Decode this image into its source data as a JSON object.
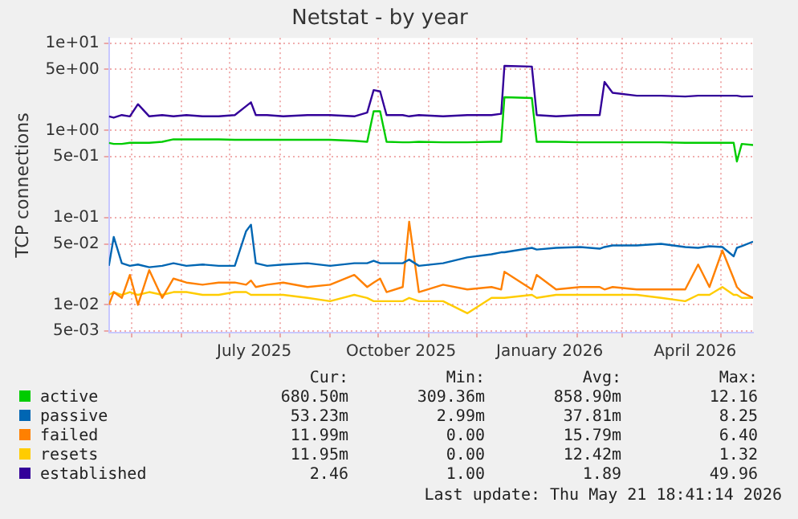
{
  "chart_data": {
    "type": "line",
    "title": "Netstat - by year",
    "ylabel": "TCP connections",
    "log": "y",
    "grid": true,
    "legend": "bottom",
    "marker": "none",
    "line_style": "solid",
    "ylim": [
      0.0048,
      11.5
    ],
    "yticks": [
      {
        "value": 10,
        "label": "1e+01"
      },
      {
        "value": 5,
        "label": "5e+00"
      },
      {
        "value": 1,
        "label": "1e+00"
      },
      {
        "value": 0.5,
        "label": "5e-01"
      },
      {
        "value": 0.1,
        "label": "1e-01"
      },
      {
        "value": 0.05,
        "label": "5e-02"
      },
      {
        "value": 0.01,
        "label": "1e-02"
      },
      {
        "value": 0.005,
        "label": "5e-03"
      }
    ],
    "xlim": [
      "2025-04-17",
      "2026-05-21"
    ],
    "xticks": [
      {
        "value": "2025-05-01",
        "label": null
      },
      {
        "value": "2025-06-01",
        "label": null
      },
      {
        "value": "2025-07-01",
        "label": null
      },
      {
        "value": "2025-07-16",
        "label": "July 2025"
      },
      {
        "value": "2025-08-01",
        "label": null
      },
      {
        "value": "2025-09-01",
        "label": null
      },
      {
        "value": "2025-10-01",
        "label": null
      },
      {
        "value": "2025-10-15",
        "label": "October 2025"
      },
      {
        "value": "2025-11-01",
        "label": null
      },
      {
        "value": "2025-12-01",
        "label": null
      },
      {
        "value": "2026-01-01",
        "label": null
      },
      {
        "value": "2026-01-15",
        "label": "January 2026"
      },
      {
        "value": "2026-02-01",
        "label": null
      },
      {
        "value": "2026-03-01",
        "label": null
      },
      {
        "value": "2026-04-01",
        "label": null
      },
      {
        "value": "2026-04-15",
        "label": "April 2026"
      },
      {
        "value": "2026-05-01",
        "label": null
      }
    ],
    "x": [
      "2025-04-17",
      "2025-04-20",
      "2025-04-25",
      "2025-04-30",
      "2025-05-05",
      "2025-05-12",
      "2025-05-20",
      "2025-05-27",
      "2025-06-04",
      "2025-06-14",
      "2025-06-24",
      "2025-07-04",
      "2025-07-11",
      "2025-07-14",
      "2025-07-17",
      "2025-07-24",
      "2025-08-03",
      "2025-08-18",
      "2025-09-01",
      "2025-09-16",
      "2025-09-24",
      "2025-09-28",
      "2025-10-02",
      "2025-10-06",
      "2025-10-16",
      "2025-10-20",
      "2025-10-26",
      "2025-11-10",
      "2025-11-25",
      "2025-12-10",
      "2025-12-16",
      "2025-12-18",
      "2026-01-04",
      "2026-01-07",
      "2026-01-19",
      "2026-02-03",
      "2026-02-15",
      "2026-02-18",
      "2026-02-23",
      "2026-03-10",
      "2026-03-25",
      "2026-04-09",
      "2026-04-17",
      "2026-04-24",
      "2026-05-02",
      "2026-05-09",
      "2026-05-11",
      "2026-05-14",
      "2026-05-21"
    ],
    "series": [
      {
        "name": "active",
        "color": "#00cc00",
        "values": [
          0.72,
          0.7,
          0.7,
          0.72,
          0.72,
          0.72,
          0.74,
          0.79,
          0.79,
          0.79,
          0.79,
          0.78,
          0.78,
          0.78,
          0.78,
          0.78,
          0.78,
          0.78,
          0.78,
          0.76,
          0.74,
          1.66,
          1.66,
          0.74,
          0.73,
          0.73,
          0.74,
          0.73,
          0.73,
          0.74,
          0.74,
          2.4,
          2.35,
          0.74,
          0.74,
          0.73,
          0.73,
          0.73,
          0.73,
          0.73,
          0.73,
          0.72,
          0.72,
          0.72,
          0.72,
          0.72,
          0.44,
          0.7,
          0.68
        ]
      },
      {
        "name": "passive",
        "color": "#0066b3",
        "values": [
          0.028,
          0.06,
          0.03,
          0.028,
          0.029,
          0.027,
          0.028,
          0.03,
          0.028,
          0.029,
          0.028,
          0.028,
          0.07,
          0.083,
          0.03,
          0.028,
          0.029,
          0.03,
          0.028,
          0.03,
          0.03,
          0.032,
          0.03,
          0.03,
          0.03,
          0.033,
          0.028,
          0.03,
          0.035,
          0.038,
          0.04,
          0.04,
          0.045,
          0.043,
          0.045,
          0.046,
          0.044,
          0.046,
          0.048,
          0.048,
          0.05,
          0.046,
          0.045,
          0.047,
          0.046,
          0.036,
          0.045,
          0.047,
          0.053
        ]
      },
      {
        "name": "failed",
        "color": "#ff8000",
        "values": [
          0.01,
          0.014,
          0.012,
          0.022,
          0.01,
          0.025,
          0.012,
          0.02,
          0.018,
          0.017,
          0.018,
          0.018,
          0.017,
          0.019,
          0.016,
          0.017,
          0.018,
          0.016,
          0.017,
          0.022,
          0.016,
          0.018,
          0.02,
          0.014,
          0.016,
          0.09,
          0.014,
          0.017,
          0.015,
          0.016,
          0.015,
          0.024,
          0.015,
          0.022,
          0.015,
          0.016,
          0.016,
          0.015,
          0.016,
          0.015,
          0.015,
          0.015,
          0.029,
          0.016,
          0.042,
          0.02,
          0.016,
          0.014,
          0.012
        ]
      },
      {
        "name": "resets",
        "color": "#ffcc00",
        "values": [
          0.013,
          0.014,
          0.013,
          0.014,
          0.013,
          0.014,
          0.013,
          0.014,
          0.014,
          0.013,
          0.013,
          0.014,
          0.014,
          0.013,
          0.013,
          0.013,
          0.013,
          0.012,
          0.011,
          0.013,
          0.012,
          0.011,
          0.011,
          0.011,
          0.011,
          0.012,
          0.011,
          0.011,
          0.008,
          0.012,
          0.012,
          0.012,
          0.013,
          0.012,
          0.013,
          0.013,
          0.013,
          0.013,
          0.013,
          0.013,
          0.012,
          0.011,
          0.013,
          0.013,
          0.016,
          0.013,
          0.013,
          0.012,
          0.012
        ]
      },
      {
        "name": "established",
        "color": "#330099",
        "values": [
          1.45,
          1.4,
          1.5,
          1.45,
          2.0,
          1.45,
          1.5,
          1.45,
          1.5,
          1.45,
          1.45,
          1.5,
          1.9,
          2.1,
          1.5,
          1.5,
          1.45,
          1.5,
          1.5,
          1.45,
          1.6,
          2.9,
          2.8,
          1.5,
          1.5,
          1.45,
          1.5,
          1.45,
          1.5,
          1.5,
          1.55,
          5.5,
          5.4,
          1.5,
          1.45,
          1.5,
          1.5,
          3.6,
          2.7,
          2.5,
          2.5,
          2.45,
          2.5,
          2.5,
          2.5,
          2.5,
          2.5,
          2.45,
          2.46
        ]
      }
    ],
    "annotations": [
      "Cur:",
      "Min:",
      "Avg:",
      "Max:",
      "680.50m",
      "309.36m",
      "858.90m",
      "12.16",
      "53.23m",
      "2.99m",
      "37.81m",
      "8.25",
      "11.99m",
      "0.00",
      "15.79m",
      "6.40",
      "11.95m",
      "0.00",
      "12.42m",
      "1.32",
      "2.46",
      "1.00",
      "1.89",
      "49.96",
      "Last update: Thu May 21 18:41:14 2026"
    ]
  }
}
